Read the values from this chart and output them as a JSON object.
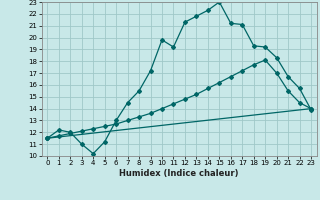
{
  "xlabel": "Humidex (Indice chaleur)",
  "bg_color": "#c8e8e8",
  "grid_color": "#a0c8c8",
  "line_color": "#006666",
  "xlim": [
    -0.5,
    23.5
  ],
  "ylim": [
    10,
    23
  ],
  "xticks": [
    0,
    1,
    2,
    3,
    4,
    5,
    6,
    7,
    8,
    9,
    10,
    11,
    12,
    13,
    14,
    15,
    16,
    17,
    18,
    19,
    20,
    21,
    22,
    23
  ],
  "yticks": [
    10,
    11,
    12,
    13,
    14,
    15,
    16,
    17,
    18,
    19,
    20,
    21,
    22,
    23
  ],
  "curve1_x": [
    0,
    1,
    2,
    3,
    4,
    5,
    6,
    7,
    8,
    9,
    10,
    11,
    12,
    13,
    14,
    15,
    16,
    17,
    18,
    19,
    20,
    21,
    22,
    23
  ],
  "curve1_y": [
    11.5,
    12.2,
    12.0,
    11.0,
    10.2,
    11.2,
    13.0,
    14.5,
    15.5,
    17.2,
    19.8,
    19.2,
    21.3,
    21.8,
    22.3,
    23.0,
    21.2,
    21.1,
    19.3,
    19.2,
    18.3,
    16.7,
    15.7,
    13.9
  ],
  "curve2_x": [
    0,
    1,
    2,
    3,
    4,
    5,
    6,
    7,
    8,
    9,
    10,
    11,
    12,
    13,
    14,
    15,
    16,
    17,
    18,
    19,
    20,
    21,
    22,
    23
  ],
  "curve2_y": [
    11.5,
    11.7,
    11.9,
    12.1,
    12.3,
    12.5,
    12.7,
    13.0,
    13.3,
    13.6,
    14.0,
    14.4,
    14.8,
    15.2,
    15.7,
    16.2,
    16.7,
    17.2,
    17.7,
    18.1,
    17.0,
    15.5,
    14.5,
    14.0
  ],
  "curve3_x": [
    0,
    23
  ],
  "curve3_y": [
    11.5,
    14.0
  ],
  "tick_fontsize": 5,
  "xlabel_fontsize": 6,
  "marker_size": 2.0,
  "line_width": 0.9
}
